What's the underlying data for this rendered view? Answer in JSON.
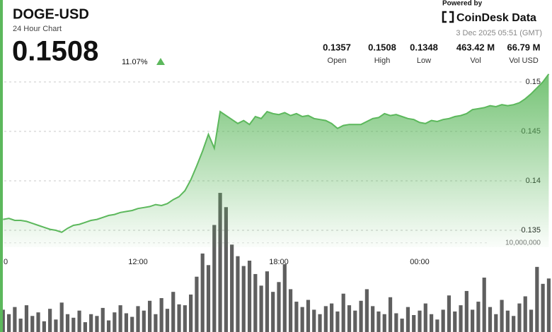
{
  "header": {
    "title": "DOGE-USD",
    "subtitle": "24 Hour Chart",
    "price": "0.1508",
    "change": "11.07%",
    "powered_by": "Powered by",
    "brand": "CoinDesk Data",
    "timestamp": "3 Dec 2025 05:51 (GMT)",
    "stats": [
      {
        "value": "0.1357",
        "label": "Open"
      },
      {
        "value": "0.1508",
        "label": "High"
      },
      {
        "value": "0.1348",
        "label": "Low"
      },
      {
        "value": "463.42 M",
        "label": "Vol"
      },
      {
        "value": "66.79 M",
        "label": "Vol USD"
      }
    ]
  },
  "chart_data": {
    "type": "line",
    "x": [
      6.25,
      6.5,
      6.75,
      7,
      7.25,
      7.5,
      7.75,
      8,
      8.25,
      8.5,
      8.75,
      9,
      9.25,
      9.5,
      9.75,
      10,
      10.25,
      10.5,
      10.75,
      11,
      11.25,
      11.5,
      11.75,
      12,
      12.25,
      12.5,
      12.75,
      13,
      13.25,
      13.5,
      13.75,
      14,
      14.25,
      14.5,
      14.75,
      15,
      15.25,
      15.5,
      15.75,
      16,
      16.25,
      16.5,
      16.75,
      17,
      17.25,
      17.5,
      17.75,
      18,
      18.25,
      18.5,
      18.75,
      19,
      19.25,
      19.5,
      19.75,
      20,
      20.25,
      20.5,
      20.75,
      21,
      21.25,
      21.5,
      21.75,
      22,
      22.25,
      22.5,
      22.75,
      23,
      23.25,
      23.5,
      23.75,
      24,
      24.25,
      24.5,
      24.75,
      25,
      25.25,
      25.5,
      25.75,
      26,
      26.25,
      26.5,
      26.75,
      27,
      27.25,
      27.5,
      27.75,
      28,
      28.25,
      28.5,
      28.75,
      29,
      29.25,
      29.5
    ],
    "series": [
      {
        "color": "#5cb85c",
        "values": [
          0.1361,
          0.1362,
          0.136,
          0.136,
          0.1359,
          0.1357,
          0.1355,
          0.1353,
          0.1351,
          0.135,
          0.1348,
          0.1352,
          0.1355,
          0.1356,
          0.1358,
          0.136,
          0.1361,
          0.1363,
          0.1365,
          0.1366,
          0.1368,
          0.1369,
          0.137,
          0.1372,
          0.1373,
          0.1374,
          0.1376,
          0.1375,
          0.1377,
          0.1381,
          0.1384,
          0.139,
          0.1401,
          0.1415,
          0.143,
          0.1447,
          0.1433,
          0.147,
          0.1466,
          0.1462,
          0.1458,
          0.1461,
          0.1457,
          0.1465,
          0.1463,
          0.147,
          0.1468,
          0.1467,
          0.1469,
          0.1466,
          0.1468,
          0.1465,
          0.1466,
          0.1463,
          0.1462,
          0.1461,
          0.1458,
          0.1453,
          0.1456,
          0.1457,
          0.1457,
          0.1457,
          0.146,
          0.1463,
          0.1464,
          0.1468,
          0.1466,
          0.1467,
          0.1465,
          0.1463,
          0.1462,
          0.1459,
          0.1458,
          0.1461,
          0.146,
          0.1462,
          0.1463,
          0.1465,
          0.1466,
          0.1468,
          0.1472,
          0.1473,
          0.1474,
          0.1476,
          0.1475,
          0.1477,
          0.1476,
          0.1477,
          0.1479,
          0.1483,
          0.1488,
          0.1494,
          0.15,
          0.1508
        ]
      },
      {
        "type": "bar",
        "axis": "y2",
        "color": "#5f5f5f",
        "values": [
          2500000,
          2000000,
          2800000,
          1500000,
          3000000,
          1800000,
          2200000,
          1200000,
          2600000,
          1400000,
          3300000,
          2000000,
          1600000,
          2400000,
          1100000,
          2000000,
          1800000,
          2700000,
          1300000,
          2200000,
          3000000,
          2100000,
          1700000,
          2900000,
          2400000,
          3500000,
          2000000,
          3800000,
          2600000,
          4500000,
          3100000,
          3000000,
          4200000,
          6200000,
          8800000,
          7500000,
          12000000,
          15600000,
          14000000,
          9800000,
          8500000,
          7400000,
          8000000,
          6500000,
          5200000,
          6800000,
          4500000,
          5600000,
          7600000,
          4800000,
          3400000,
          2800000,
          3600000,
          2500000,
          2000000,
          2900000,
          3200000,
          2300000,
          4300000,
          3000000,
          2400000,
          3500000,
          4800000,
          2900000,
          2300000,
          2000000,
          3900000,
          2100000,
          1500000,
          2800000,
          1900000,
          2400000,
          3200000,
          2000000,
          1400000,
          2500000,
          4100000,
          2300000,
          3000000,
          4600000,
          2500000,
          3400000,
          6100000,
          2800000,
          2000000,
          3600000,
          2400000,
          1800000,
          3200000,
          4000000,
          2500000,
          7300000,
          5400000,
          6000000
        ]
      }
    ],
    "xlim": [
      6,
      30
    ],
    "xticks": [
      {
        "value": 6,
        "label": "0"
      },
      {
        "value": 12,
        "label": "12:00"
      },
      {
        "value": 18,
        "label": "18:00"
      },
      {
        "value": 24,
        "label": "00:00"
      }
    ],
    "ylim": [
      0.134,
      0.151
    ],
    "yticks": [
      0.135,
      0.14,
      0.145,
      0.15
    ],
    "y2lim": [
      0,
      16000000
    ],
    "y2ticks": [
      {
        "value": 10000000,
        "label": "10,000,000"
      }
    ],
    "grid": true
  }
}
